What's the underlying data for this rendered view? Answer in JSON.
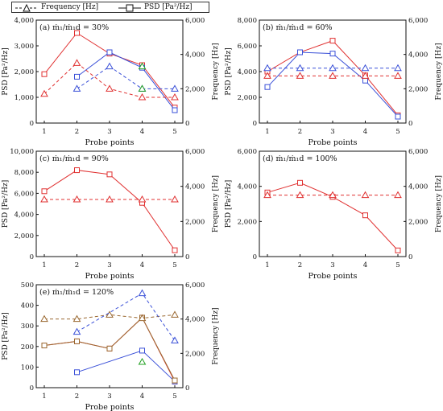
{
  "legend": {
    "frequency_label": "Frequency [Hz]",
    "psd_label": "PSD [Pa²/Hz]",
    "frequency_marker": "triangle-dashed",
    "psd_marker": "square-solid"
  },
  "colors": {
    "red": "#e03030",
    "blue": "#3a50d8",
    "green": "#22a022",
    "brown": "#9a6830",
    "axis": "#111111"
  },
  "chart_data": [
    {
      "type": "line",
      "panel_label": "(a) ṁ₁/ṁ₁d = 30%",
      "xlabel": "Probe points",
      "ylabel_left": "PSD [Pa²/Hz]",
      "ylabel_right": "Frequency [Hz]",
      "xlim": [
        1,
        5
      ],
      "x_ticks": [
        "1",
        "2",
        "3",
        "4",
        "5"
      ],
      "ylim_left": [
        0,
        4000
      ],
      "left_ticks": [
        0,
        1000,
        2000,
        3000,
        4000
      ],
      "left_tick_labels": [
        "0",
        "1,000",
        "2,000",
        "3,000",
        "4,000"
      ],
      "ylim_right": [
        0,
        6000
      ],
      "right_ticks": [
        0,
        2000,
        4000,
        6000
      ],
      "right_tick_labels": [
        "0",
        "2,000",
        "4,000",
        "6,000"
      ],
      "psd_series": [
        {
          "color": "red",
          "points": [
            [
              1,
              1900
            ],
            [
              2,
              3500
            ],
            [
              3,
              2700
            ],
            [
              4,
              2250
            ],
            [
              5,
              600
            ]
          ]
        },
        {
          "color": "blue",
          "points": [
            [
              2,
              1800
            ],
            [
              3,
              2750
            ],
            [
              4,
              2150
            ],
            [
              5,
              500
            ]
          ]
        }
      ],
      "freq_series": [
        {
          "color": "red",
          "points": [
            [
              1,
              1700
            ],
            [
              2,
              3500
            ],
            [
              3,
              2000
            ],
            [
              4,
              1500
            ],
            [
              5,
              1500
            ]
          ]
        },
        {
          "color": "blue",
          "points": [
            [
              2,
              2000
            ],
            [
              3,
              3300
            ],
            [
              4,
              2000
            ],
            [
              5,
              2000
            ]
          ]
        },
        {
          "color": "green",
          "points": [
            [
              4,
              3300
            ],
            [
              4,
              2000
            ]
          ]
        }
      ]
    },
    {
      "type": "line",
      "panel_label": "(b) ṁ₁/ṁ₁d = 60%",
      "xlabel": "Probe points",
      "ylabel_left": "PSD [Pa²/Hz]",
      "ylabel_right": "Frequency [Hz]",
      "xlim": [
        1,
        5
      ],
      "x_ticks": [
        "1",
        "2",
        "3",
        "4",
        "5"
      ],
      "ylim_left": [
        0,
        8000
      ],
      "left_ticks": [
        0,
        2000,
        4000,
        6000,
        8000
      ],
      "left_tick_labels": [
        "0",
        "2,000",
        "4,000",
        "6,000",
        "8,000"
      ],
      "ylim_right": [
        0,
        6000
      ],
      "right_ticks": [
        0,
        2000,
        4000,
        6000
      ],
      "right_tick_labels": [
        "0",
        "2,000",
        "4,000",
        "6,000"
      ],
      "psd_series": [
        {
          "color": "red",
          "points": [
            [
              1,
              4000
            ],
            [
              2,
              5500
            ],
            [
              3,
              6400
            ],
            [
              4,
              3700
            ],
            [
              5,
              600
            ]
          ]
        },
        {
          "color": "blue",
          "points": [
            [
              1,
              2800
            ],
            [
              2,
              5500
            ],
            [
              3,
              5400
            ],
            [
              4,
              3300
            ],
            [
              5,
              500
            ]
          ]
        }
      ],
      "freq_series": [
        {
          "color": "red",
          "points": [
            [
              1,
              2750
            ],
            [
              2,
              2750
            ],
            [
              3,
              2750
            ],
            [
              4,
              2750
            ],
            [
              5,
              2750
            ]
          ]
        },
        {
          "color": "blue",
          "points": [
            [
              1,
              3200
            ],
            [
              2,
              3200
            ],
            [
              3,
              3200
            ],
            [
              4,
              3200
            ],
            [
              5,
              3200
            ]
          ]
        }
      ]
    },
    {
      "type": "line",
      "panel_label": "(c) ṁ₁/ṁ₁d = 90%",
      "xlabel": "Probe points",
      "ylabel_left": "PSD [Pa²/Hz]",
      "ylabel_right": "Frequency [Hz]",
      "xlim": [
        1,
        5
      ],
      "x_ticks": [
        "1",
        "2",
        "3",
        "4",
        "5"
      ],
      "ylim_left": [
        0,
        10000
      ],
      "left_ticks": [
        0,
        2000,
        4000,
        6000,
        8000,
        10000
      ],
      "left_tick_labels": [
        "0",
        "2,000",
        "4,000",
        "6,000",
        "8,000",
        "10,000"
      ],
      "ylim_right": [
        0,
        6000
      ],
      "right_ticks": [
        0,
        2000,
        4000,
        6000
      ],
      "right_tick_labels": [
        "0",
        "2,000",
        "4,000",
        "6,000"
      ],
      "psd_series": [
        {
          "color": "red",
          "points": [
            [
              1,
              6200
            ],
            [
              2,
              8200
            ],
            [
              3,
              7800
            ],
            [
              4,
              5100
            ],
            [
              5,
              600
            ]
          ]
        }
      ],
      "freq_series": [
        {
          "color": "red",
          "points": [
            [
              1,
              3250
            ],
            [
              2,
              3250
            ],
            [
              3,
              3250
            ],
            [
              4,
              3250
            ],
            [
              5,
              3250
            ]
          ]
        }
      ]
    },
    {
      "type": "line",
      "panel_label": "(d) ṁ₁/ṁ₁d = 100%",
      "xlabel": "Probe points",
      "ylabel_left": "PSD [Pa²/Hz]",
      "ylabel_right": "Frequency [Hz]",
      "xlim": [
        1,
        5
      ],
      "x_ticks": [
        "1",
        "2",
        "3",
        "4",
        "5"
      ],
      "ylim_left": [
        0,
        6000
      ],
      "left_ticks": [
        0,
        2000,
        4000,
        6000
      ],
      "left_tick_labels": [
        "0",
        "2,000",
        "4,000",
        "6,000"
      ],
      "ylim_right": [
        0,
        6000
      ],
      "right_ticks": [
        0,
        2000,
        4000,
        6000
      ],
      "right_tick_labels": [
        "0",
        "2,000",
        "4,000",
        "6,000"
      ],
      "psd_series": [
        {
          "color": "red",
          "points": [
            [
              1,
              3650
            ],
            [
              2,
              4200
            ],
            [
              3,
              3400
            ],
            [
              4,
              2350
            ],
            [
              5,
              350
            ]
          ]
        }
      ],
      "freq_series": [
        {
          "color": "red",
          "points": [
            [
              1,
              3500
            ],
            [
              2,
              3500
            ],
            [
              3,
              3500
            ],
            [
              4,
              3500
            ],
            [
              5,
              3500
            ]
          ]
        }
      ]
    },
    {
      "type": "line",
      "panel_label": "(e) ṁ₁/ṁ₁d = 120%",
      "xlabel": "Probe points",
      "ylabel_left": "PSD [Pa²/Hz]",
      "ylabel_right": "Frequency [Hz]",
      "xlim": [
        1,
        5
      ],
      "x_ticks": [
        "1",
        "2",
        "3",
        "4",
        "5"
      ],
      "ylim_left": [
        0,
        500
      ],
      "left_ticks": [
        0,
        100,
        200,
        300,
        400,
        500
      ],
      "left_tick_labels": [
        "0",
        "100",
        "200",
        "300",
        "400",
        "500"
      ],
      "ylim_right": [
        0,
        6000
      ],
      "right_ticks": [
        0,
        2000,
        4000,
        6000
      ],
      "right_tick_labels": [
        "0",
        "2,000",
        "4,000",
        "6,000"
      ],
      "psd_series": [
        {
          "color": "red",
          "points": [
            [
              1,
              205
            ],
            [
              2,
              225
            ],
            [
              3,
              190
            ],
            [
              4,
              340
            ],
            [
              5,
              30
            ]
          ]
        },
        {
          "color": "blue",
          "points": [
            [
              2,
              75
            ],
            [
              4,
              180
            ],
            [
              5,
              30
            ]
          ]
        },
        {
          "color": "brown",
          "points": [
            [
              1,
              205
            ],
            [
              2,
              225
            ],
            [
              3,
              190
            ],
            [
              4,
              340
            ],
            [
              5,
              35
            ]
          ]
        }
      ],
      "freq_series": [
        {
          "color": "brown",
          "points": [
            [
              1,
              4000
            ],
            [
              2,
              4000
            ],
            [
              3,
              4250
            ],
            [
              4,
              4050
            ],
            [
              5,
              4250
            ]
          ]
        },
        {
          "color": "blue",
          "points": [
            [
              2,
              3250
            ],
            [
              4,
              5500
            ],
            [
              5,
              2750
            ]
          ]
        },
        {
          "color": "green",
          "points": [
            [
              4,
              1500
            ]
          ]
        }
      ]
    }
  ]
}
